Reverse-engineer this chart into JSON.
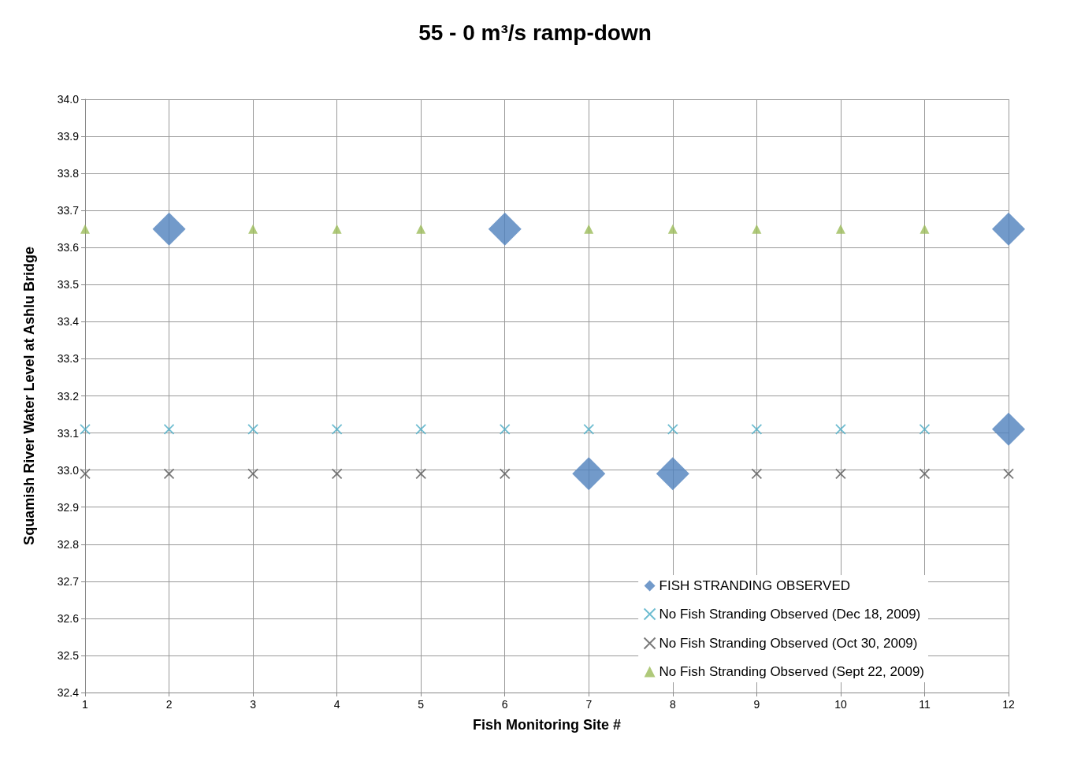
{
  "chart_data": {
    "type": "scatter",
    "title": "55 - 0 m³/s ramp-down",
    "xlabel": "Fish Monitoring Site #",
    "ylabel": "Squamish River Water Level at Ashlu Bridge",
    "x": [
      1,
      2,
      3,
      4,
      5,
      6,
      7,
      8,
      9,
      10,
      11,
      12
    ],
    "xlim": [
      1,
      12
    ],
    "xticks": [
      1,
      2,
      3,
      4,
      5,
      6,
      7,
      8,
      9,
      10,
      11,
      12
    ],
    "ylim": [
      32.4,
      34.0
    ],
    "yticks": [
      {
        "value": 32.4,
        "label": "32.4"
      },
      {
        "value": 32.5,
        "label": "32.5"
      },
      {
        "value": 32.6,
        "label": "32.6"
      },
      {
        "value": 32.7,
        "label": "32.7"
      },
      {
        "value": 32.8,
        "label": "32.8"
      },
      {
        "value": 32.9,
        "label": "32.9"
      },
      {
        "value": 33.0,
        "label": "33.0"
      },
      {
        "value": 33.1,
        "label": "33.1"
      },
      {
        "value": 33.2,
        "label": "33.2"
      },
      {
        "value": 33.3,
        "label": "33.3"
      },
      {
        "value": 33.4,
        "label": "33.4"
      },
      {
        "value": 33.5,
        "label": "33.5"
      },
      {
        "value": 33.6,
        "label": "33.6"
      },
      {
        "value": 33.7,
        "label": "33.7"
      },
      {
        "value": 33.8,
        "label": "33.8"
      },
      {
        "value": 33.9,
        "label": "33.9"
      },
      {
        "value": 34.0,
        "label": "34.0"
      }
    ],
    "grid": true,
    "legend": "bottom right",
    "series": [
      {
        "name": "No Fish Stranding Observed (Sept 22, 2009)",
        "color": "#9bbb59",
        "marker": "triangle",
        "values": [
          33.65,
          null,
          33.65,
          33.65,
          33.65,
          null,
          33.65,
          33.65,
          33.65,
          33.65,
          33.65,
          null
        ]
      },
      {
        "name": "No Fish Stranding Observed (Oct 30, 2009)",
        "color": "#595959",
        "marker": "cross",
        "values": [
          32.99,
          32.99,
          32.99,
          32.99,
          32.99,
          32.99,
          null,
          null,
          32.99,
          32.99,
          32.99,
          32.99
        ]
      },
      {
        "name": "No Fish Stranding Observed (Dec 18, 2009)",
        "color": "#4bacc6",
        "marker": "cross",
        "values": [
          33.11,
          33.11,
          33.11,
          33.11,
          33.11,
          33.11,
          33.11,
          33.11,
          33.11,
          33.11,
          33.11,
          null
        ]
      },
      {
        "name": "FISH STRANDING OBSERVED",
        "color": "#4f81bd",
        "marker": "diamond",
        "x": [
          2,
          6,
          12,
          7,
          8,
          12
        ],
        "values": [
          33.65,
          33.65,
          33.65,
          32.99,
          32.99,
          33.11
        ]
      }
    ]
  }
}
